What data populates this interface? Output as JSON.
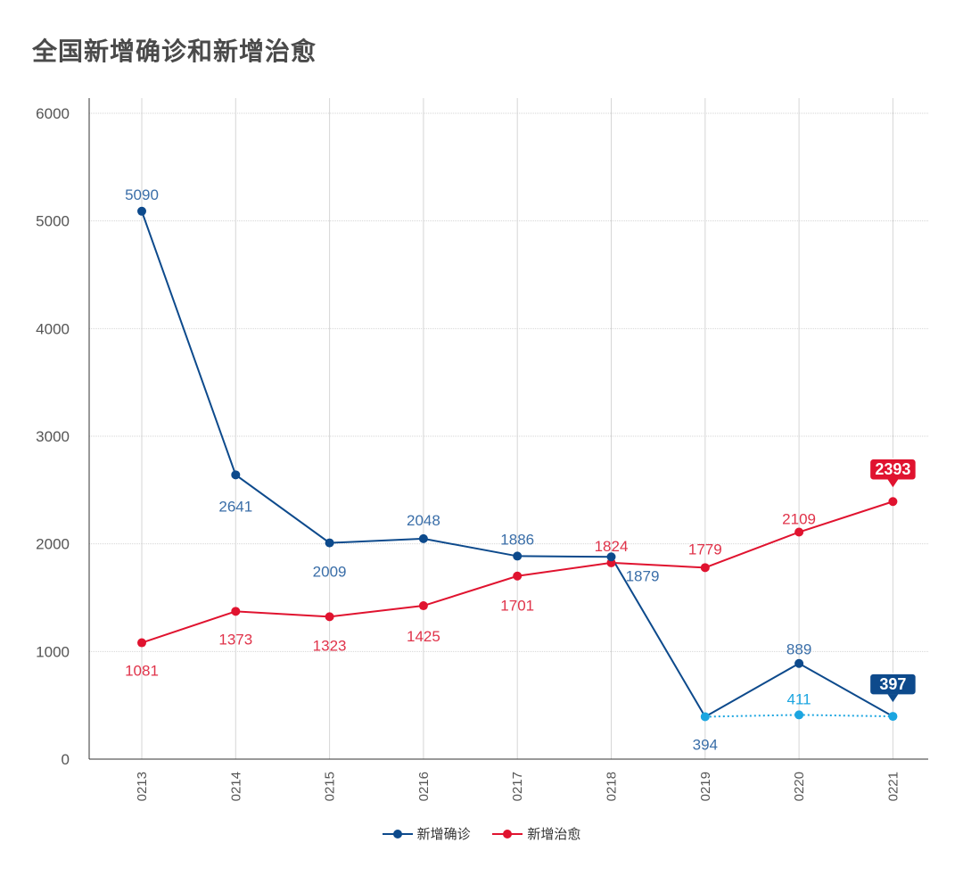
{
  "title": "全国新增确诊和新增治愈",
  "colors": {
    "confirmed": "#0d4a8c",
    "confirmed_label": "#3a6ea8",
    "cured": "#e0132f",
    "cured_label": "#e0334a",
    "alt_confirmed": "#1ba5e0",
    "grid": "#d6d6d6",
    "axis": "#333333"
  },
  "chart_data": {
    "type": "line",
    "categories": [
      "0213",
      "0214",
      "0215",
      "0216",
      "0217",
      "0218",
      "0219",
      "0220",
      "0221"
    ],
    "ylim": [
      0,
      6000
    ],
    "yticks": [
      0,
      1000,
      2000,
      3000,
      4000,
      5000,
      6000
    ],
    "grid": true,
    "legend_position": "bottom",
    "series": [
      {
        "name": "新增确诊",
        "values": [
          5090,
          2641,
          2009,
          2048,
          1886,
          1879,
          394,
          889,
          397
        ],
        "labels": [
          "5090",
          "2641",
          "2009",
          "2048",
          "1886",
          "1879",
          "394",
          "889",
          "397"
        ]
      },
      {
        "name": "新增治愈",
        "values": [
          1081,
          1373,
          1323,
          1425,
          1701,
          1824,
          1779,
          2109,
          2393
        ],
        "labels": [
          "1081",
          "1373",
          "1323",
          "1425",
          "1701",
          "1824",
          "1779",
          "2109",
          "2393"
        ]
      }
    ],
    "secondary_series": {
      "categories": [
        "0219",
        "0220",
        "0221"
      ],
      "values": [
        394,
        411,
        397
      ],
      "labels": [
        "411"
      ],
      "style": "dotted"
    },
    "highlighted": [
      {
        "series": "新增治愈",
        "category": "0221",
        "label": "2393"
      },
      {
        "series": "新增确诊",
        "category": "0221",
        "label": "397"
      }
    ]
  }
}
